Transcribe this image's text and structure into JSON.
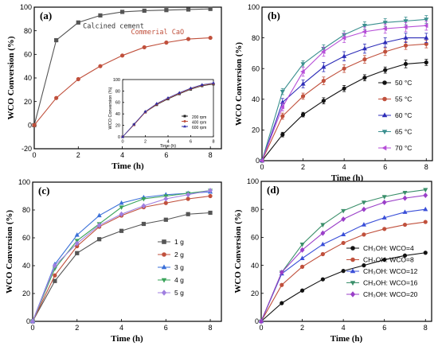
{
  "chart_data": [
    {
      "id": "a",
      "type": "line",
      "panel_label": "(a)",
      "xlabel": "Time (h)",
      "ylabel": "WCO Conversion (%)",
      "xlim": [
        0,
        8.5
      ],
      "ylim": [
        -20,
        100
      ],
      "xticks": [
        0,
        2,
        4,
        6,
        8
      ],
      "yticks": [
        -20,
        0,
        20,
        40,
        60,
        80,
        100
      ],
      "grid": false,
      "legend": "none",
      "x": [
        0,
        1,
        2,
        3,
        4,
        5,
        6,
        7,
        8
      ],
      "series": [
        {
          "values": [
            0,
            72,
            87,
            93,
            96,
            97,
            97.5,
            98,
            98.5
          ],
          "color": "#555555",
          "marker": "square"
        },
        {
          "values": [
            0,
            23,
            39,
            50,
            59,
            66,
            70,
            73,
            74
          ],
          "color": "#c0503c",
          "marker": "circle"
        }
      ],
      "annotations": [
        {
          "text": "Calcined cement",
          "x": 3.6,
          "y": 82,
          "color": "#333333"
        },
        {
          "text": "Commerial CaO",
          "x": 5.6,
          "y": 77,
          "color": "#c0503c"
        }
      ],
      "inset": {
        "xlabel": "Time (h)",
        "ylabel": "WCO Conversion (%)",
        "xlim": [
          0,
          8
        ],
        "ylim": [
          0,
          100
        ],
        "xticks": [
          0,
          2,
          4,
          6,
          8
        ],
        "yticks": [
          0,
          20,
          40,
          60,
          80,
          100
        ],
        "legend": "bottom-right",
        "x": [
          0,
          1,
          2,
          3,
          4,
          5,
          6,
          7,
          8
        ],
        "series": [
          {
            "name": "200 rpm",
            "values": [
              0,
              21,
              43,
              56,
              66,
              75,
              83,
              89,
              92
            ],
            "color": "#222222",
            "marker": "square"
          },
          {
            "name": "400 rpm",
            "values": [
              0,
              21,
              43,
              57,
              67,
              76,
              84,
              90,
              93
            ],
            "color": "#c0503c",
            "marker": "circle"
          },
          {
            "name": "600 rpm",
            "values": [
              0,
              22,
              44,
              58,
              68,
              77,
              85,
              91,
              94
            ],
            "color": "#2d2da8",
            "marker": "triangle"
          }
        ]
      }
    },
    {
      "id": "b",
      "type": "line",
      "panel_label": "(b)",
      "xlabel": "Time (h)",
      "ylabel": "WCO Conversion (%)",
      "xlim": [
        0,
        8.3
      ],
      "ylim": [
        0,
        100
      ],
      "xticks": [
        0,
        2,
        4,
        6,
        8
      ],
      "yticks": [
        0,
        20,
        40,
        60,
        80,
        100
      ],
      "grid": false,
      "legend": "center-right",
      "x": [
        0,
        1,
        2,
        3,
        4,
        5,
        6,
        7,
        8
      ],
      "series": [
        {
          "name": "50 °C",
          "values": [
            0,
            17,
            30,
            39,
            47,
            54,
            59,
            63,
            64
          ],
          "err": [
            0,
            1.5,
            1.5,
            2,
            2,
            2,
            2,
            2.5,
            2
          ],
          "color": "#111111",
          "marker": "circle"
        },
        {
          "name": "55 °C",
          "values": [
            0,
            29,
            42,
            52,
            60,
            66,
            71,
            75,
            76
          ],
          "err": [
            0,
            2,
            2,
            2.5,
            2.5,
            2.5,
            2.5,
            2.5,
            2.5
          ],
          "color": "#c0503c",
          "marker": "circle"
        },
        {
          "name": "60 °C",
          "values": [
            0,
            38,
            50,
            61,
            68,
            73,
            77,
            80,
            80
          ],
          "err": [
            0,
            2.5,
            2.5,
            3,
            3,
            3,
            3,
            3,
            3
          ],
          "color": "#2d2db8",
          "marker": "triangle"
        },
        {
          "name": "65 °C",
          "values": [
            0,
            45,
            63,
            73,
            82,
            88,
            90,
            91,
            92
          ],
          "err": [
            0,
            2,
            2,
            2.5,
            2.5,
            2.5,
            2.5,
            2.5,
            2.5
          ],
          "color": "#3a8f8f",
          "marker": "triangle-down"
        },
        {
          "name": "70 °C",
          "values": [
            0,
            35,
            58,
            71,
            80,
            84,
            86,
            87,
            88
          ],
          "err": [
            0,
            2.5,
            3,
            3,
            3,
            3,
            3,
            3,
            3
          ],
          "color": "#b64fd8",
          "marker": "triangle-left"
        }
      ]
    },
    {
      "id": "c",
      "type": "line",
      "panel_label": "(c)",
      "xlabel": "Time (h)",
      "ylabel": "WCO Conversion (%)",
      "xlim": [
        0,
        8.5
      ],
      "ylim": [
        0,
        100
      ],
      "xticks": [
        0,
        2,
        4,
        6,
        8
      ],
      "yticks": [
        0,
        20,
        40,
        60,
        80,
        100
      ],
      "grid": false,
      "legend": "bottom-right",
      "x": [
        0,
        1,
        2,
        3,
        4,
        5,
        6,
        7,
        8
      ],
      "series": [
        {
          "name": "1 g",
          "values": [
            0,
            29,
            49,
            59,
            65,
            70,
            73,
            77,
            78
          ],
          "color": "#555555",
          "marker": "square"
        },
        {
          "name": "2 g",
          "values": [
            0,
            33,
            54,
            68,
            76,
            82,
            85,
            88,
            90
          ],
          "color": "#c0503c",
          "marker": "circle"
        },
        {
          "name": "3 g",
          "values": [
            0,
            41,
            62,
            76,
            85,
            89,
            91,
            92,
            93
          ],
          "color": "#3a6fd8",
          "marker": "triangle"
        },
        {
          "name": "4 g",
          "values": [
            0,
            38,
            58,
            70,
            82,
            88,
            90,
            92,
            94
          ],
          "color": "#3aa35a",
          "marker": "triangle-down"
        },
        {
          "name": "5 g",
          "values": [
            0,
            40,
            56,
            69,
            77,
            83,
            88,
            91,
            94
          ],
          "color": "#a07fe0",
          "marker": "diamond"
        }
      ]
    },
    {
      "id": "d",
      "type": "line",
      "panel_label": "(d)",
      "xlabel": "Time (h)",
      "ylabel": "WCO Conversion (%)",
      "xlim": [
        0,
        8.3
      ],
      "ylim": [
        0,
        100
      ],
      "xticks": [
        0,
        2,
        4,
        6,
        8
      ],
      "yticks": [
        0,
        20,
        40,
        60,
        80,
        100
      ],
      "grid": false,
      "legend": "bottom-right",
      "x": [
        0,
        1,
        2,
        3,
        4,
        5,
        6,
        7,
        8
      ],
      "series": [
        {
          "name": "CH₃OH: WCO=4",
          "values": [
            0,
            13,
            22,
            30,
            36,
            40,
            44,
            47,
            49
          ],
          "color": "#111111",
          "marker": "circle"
        },
        {
          "name": "CH₃OH: WCO=8",
          "values": [
            0,
            26,
            39,
            48,
            56,
            62,
            66,
            69,
            71
          ],
          "color": "#c0503c",
          "marker": "circle"
        },
        {
          "name": "CH₃OH: WCO=12",
          "values": [
            0,
            34,
            45,
            55,
            62,
            69,
            74,
            78,
            80
          ],
          "color": "#3a4fd8",
          "marker": "triangle"
        },
        {
          "name": "CH₃OH: WCO=16",
          "values": [
            0,
            35,
            55,
            69,
            79,
            85,
            89,
            92,
            94
          ],
          "color": "#3a8f6a",
          "marker": "triangle-down"
        },
        {
          "name": "CH₃OH: WCO=20",
          "values": [
            0,
            35,
            51,
            63,
            73,
            80,
            85,
            88,
            90
          ],
          "color": "#9a3fc8",
          "marker": "diamond"
        }
      ]
    }
  ]
}
